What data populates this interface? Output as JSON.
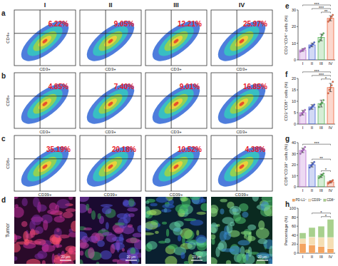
{
  "column_labels": [
    "I",
    "II",
    "III",
    "IV"
  ],
  "flow_panels": [
    {
      "label": "a",
      "y_label": "CD4+",
      "x_label": "CD3+",
      "percent_labels": [
        "6.22%",
        "9.05%",
        "12.21%",
        "25.97%"
      ]
    },
    {
      "label": "b",
      "y_label": "CD8+",
      "x_label": "CD3+",
      "percent_labels": [
        "4.85%",
        "7.40%",
        "9.01%",
        "16.85%"
      ]
    },
    {
      "label": "c",
      "y_label": "CD8+",
      "x_label": "CD39+",
      "percent_labels": [
        "35.19%",
        "20.18%",
        "10.52%",
        "4.38%"
      ]
    }
  ],
  "image_panel": {
    "label": "d",
    "row_label": "Tumor",
    "scale_bar": "20 μm"
  },
  "chart_data": [
    {
      "label": "e",
      "type": "bar",
      "y_label": "CD3⁺CD4⁺ cells (%)",
      "categories": [
        "I",
        "II",
        "III",
        "IV"
      ],
      "values": [
        6,
        9,
        13.5,
        25
      ],
      "errors": [
        0.8,
        1.1,
        2,
        1.5
      ],
      "points": [
        [
          5,
          5.5,
          6,
          6.5,
          7
        ],
        [
          7.5,
          8.5,
          9,
          9.5,
          10.5
        ],
        [
          11,
          12,
          13.5,
          15,
          16
        ],
        [
          23,
          24,
          25,
          26,
          27
        ]
      ],
      "colors": [
        "#b86bd1",
        "#4a66d9",
        "#5cb85c",
        "#f0643c"
      ],
      "ylim": [
        0,
        30
      ],
      "yticks": [
        0,
        10,
        20,
        30
      ],
      "annotations": [
        {
          "text": "***",
          "from": "I",
          "to": "IV"
        },
        {
          "text": "***",
          "from": "II",
          "to": "IV"
        },
        {
          "text": "**",
          "from": "III",
          "to": "IV"
        }
      ]
    },
    {
      "label": "f",
      "type": "bar",
      "y_label": "CD3⁺CD8⁺ cells (%)",
      "categories": [
        "I",
        "II",
        "III",
        "IV"
      ],
      "values": [
        5,
        7.5,
        9,
        16
      ],
      "errors": [
        1,
        1,
        1.5,
        1.8
      ],
      "points": [
        [
          3.8,
          4.5,
          5,
          5.5,
          6.2
        ],
        [
          6.5,
          7,
          7.5,
          8,
          8.5
        ],
        [
          7.5,
          8.5,
          9,
          9.5,
          10.5
        ],
        [
          13.5,
          15,
          16,
          17,
          18.5
        ]
      ],
      "colors": [
        "#b86bd1",
        "#4a66d9",
        "#5cb85c",
        "#f0643c"
      ],
      "ylim": [
        0,
        20
      ],
      "yticks": [
        0,
        5,
        10,
        15,
        20
      ],
      "annotations": [
        {
          "text": "***",
          "from": "I",
          "to": "IV"
        },
        {
          "text": "***",
          "from": "II",
          "to": "IV"
        },
        {
          "text": "*",
          "from": "III",
          "to": "IV"
        }
      ]
    },
    {
      "label": "g",
      "type": "bar",
      "y_label": "CD8⁺CD39⁺ cells (%)",
      "categories": [
        "I",
        "II",
        "III",
        "IV"
      ],
      "values": [
        33,
        20,
        10,
        4.5
      ],
      "errors": [
        2,
        2,
        1.5,
        1
      ],
      "points": [
        [
          30,
          32,
          33,
          34,
          36
        ],
        [
          17.5,
          19,
          20,
          21,
          22.5
        ],
        [
          8,
          9,
          10,
          11,
          12
        ],
        [
          3,
          4,
          4.5,
          5,
          6
        ]
      ],
      "colors": [
        "#b86bd1",
        "#4a66d9",
        "#5cb85c",
        "#f0643c"
      ],
      "ylim": [
        0,
        40
      ],
      "yticks": [
        0,
        10,
        20,
        30,
        40
      ],
      "annotations": [
        {
          "text": "***",
          "from": "I",
          "to": "IV"
        },
        {
          "text": "**",
          "from": "II",
          "to": "IV"
        },
        {
          "text": "*",
          "from": "III",
          "to": "IV"
        }
      ]
    },
    {
      "label": "h",
      "type": "bar",
      "stacked": true,
      "legend": "top",
      "y_label": "Percentage (%)",
      "categories": [
        "I",
        "II",
        "III",
        "IV"
      ],
      "series": [
        {
          "name": "PD-L1⁺",
          "color": "#f4a460",
          "values": [
            22,
            18,
            15,
            10
          ]
        },
        {
          "name": "CD39⁺",
          "color": "#f5deb3",
          "values": [
            10,
            18,
            20,
            25
          ]
        },
        {
          "name": "CD8⁺",
          "color": "#a8d08d",
          "values": [
            13,
            21,
            25,
            40
          ]
        }
      ],
      "ylim": [
        0,
        100
      ],
      "yticks": [
        0,
        20,
        40,
        60,
        80,
        100
      ],
      "annotations": [
        {
          "text": "*",
          "from": "II",
          "to": "IV"
        },
        {
          "text": "*",
          "from": "III",
          "to": "IV"
        }
      ]
    }
  ]
}
